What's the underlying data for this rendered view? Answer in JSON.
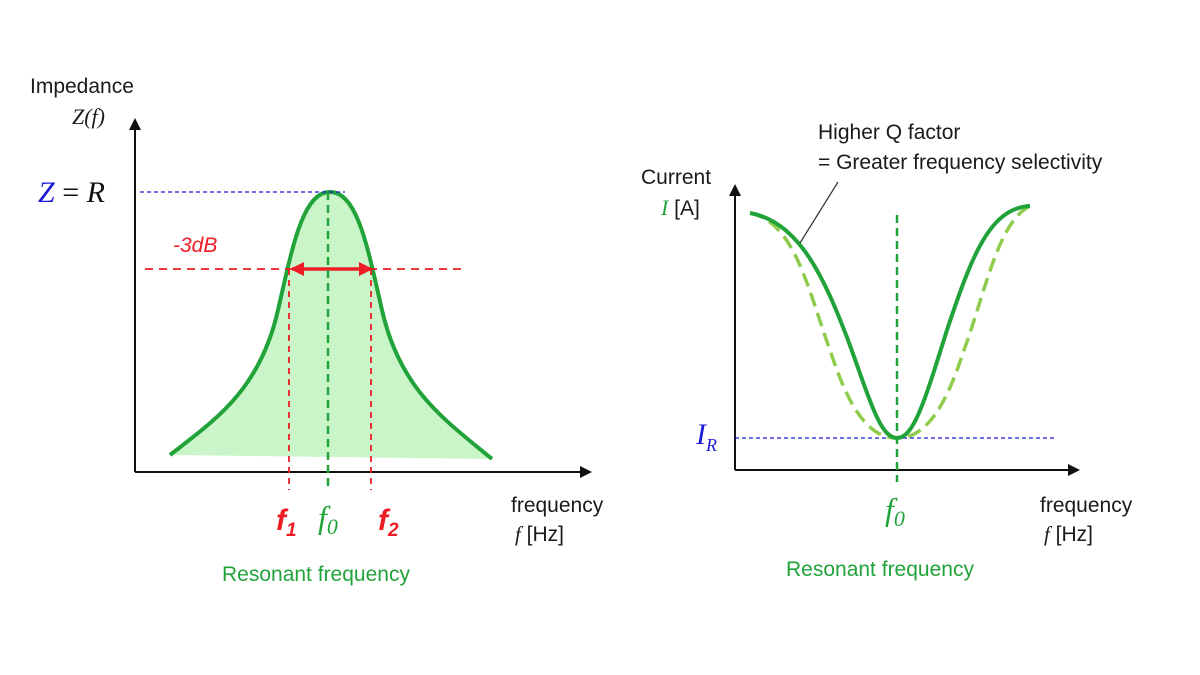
{
  "colors": {
    "curve_green": "#22a33a",
    "fill_green": "#c9f5c9",
    "dashed_light_green": "#8fcc4e",
    "red": "#ee1c24",
    "blue": "#1a1ad6",
    "axis": "#111111"
  },
  "left": {
    "y_axis_title": "Impedance",
    "y_axis_symbol": "Z(f)",
    "peak_label": {
      "lhs": "Z",
      "eq": " = ",
      "rhs": "R"
    },
    "db_label": "-3dB",
    "f1": {
      "base": "f",
      "sub": "1"
    },
    "f0": {
      "base": "f",
      "sub": "0"
    },
    "f2": {
      "base": "f",
      "sub": "2"
    },
    "x_axis_title": "frequency",
    "x_axis_unit_symbol": "f",
    "x_axis_unit": " [Hz]",
    "caption": "Resonant frequency"
  },
  "right": {
    "annotation_line1": "Higher Q factor",
    "annotation_line2": "= Greater frequency selectivity",
    "y_axis_title": "Current",
    "y_axis_symbol": "I",
    "y_axis_unit": " [A]",
    "min_label": {
      "base": "I",
      "sub": "R"
    },
    "f0": {
      "base": "f",
      "sub": "0"
    },
    "x_axis_title": "frequency",
    "x_axis_unit_symbol": "f",
    "x_axis_unit": " [Hz]",
    "caption": "Resonant frequency"
  }
}
